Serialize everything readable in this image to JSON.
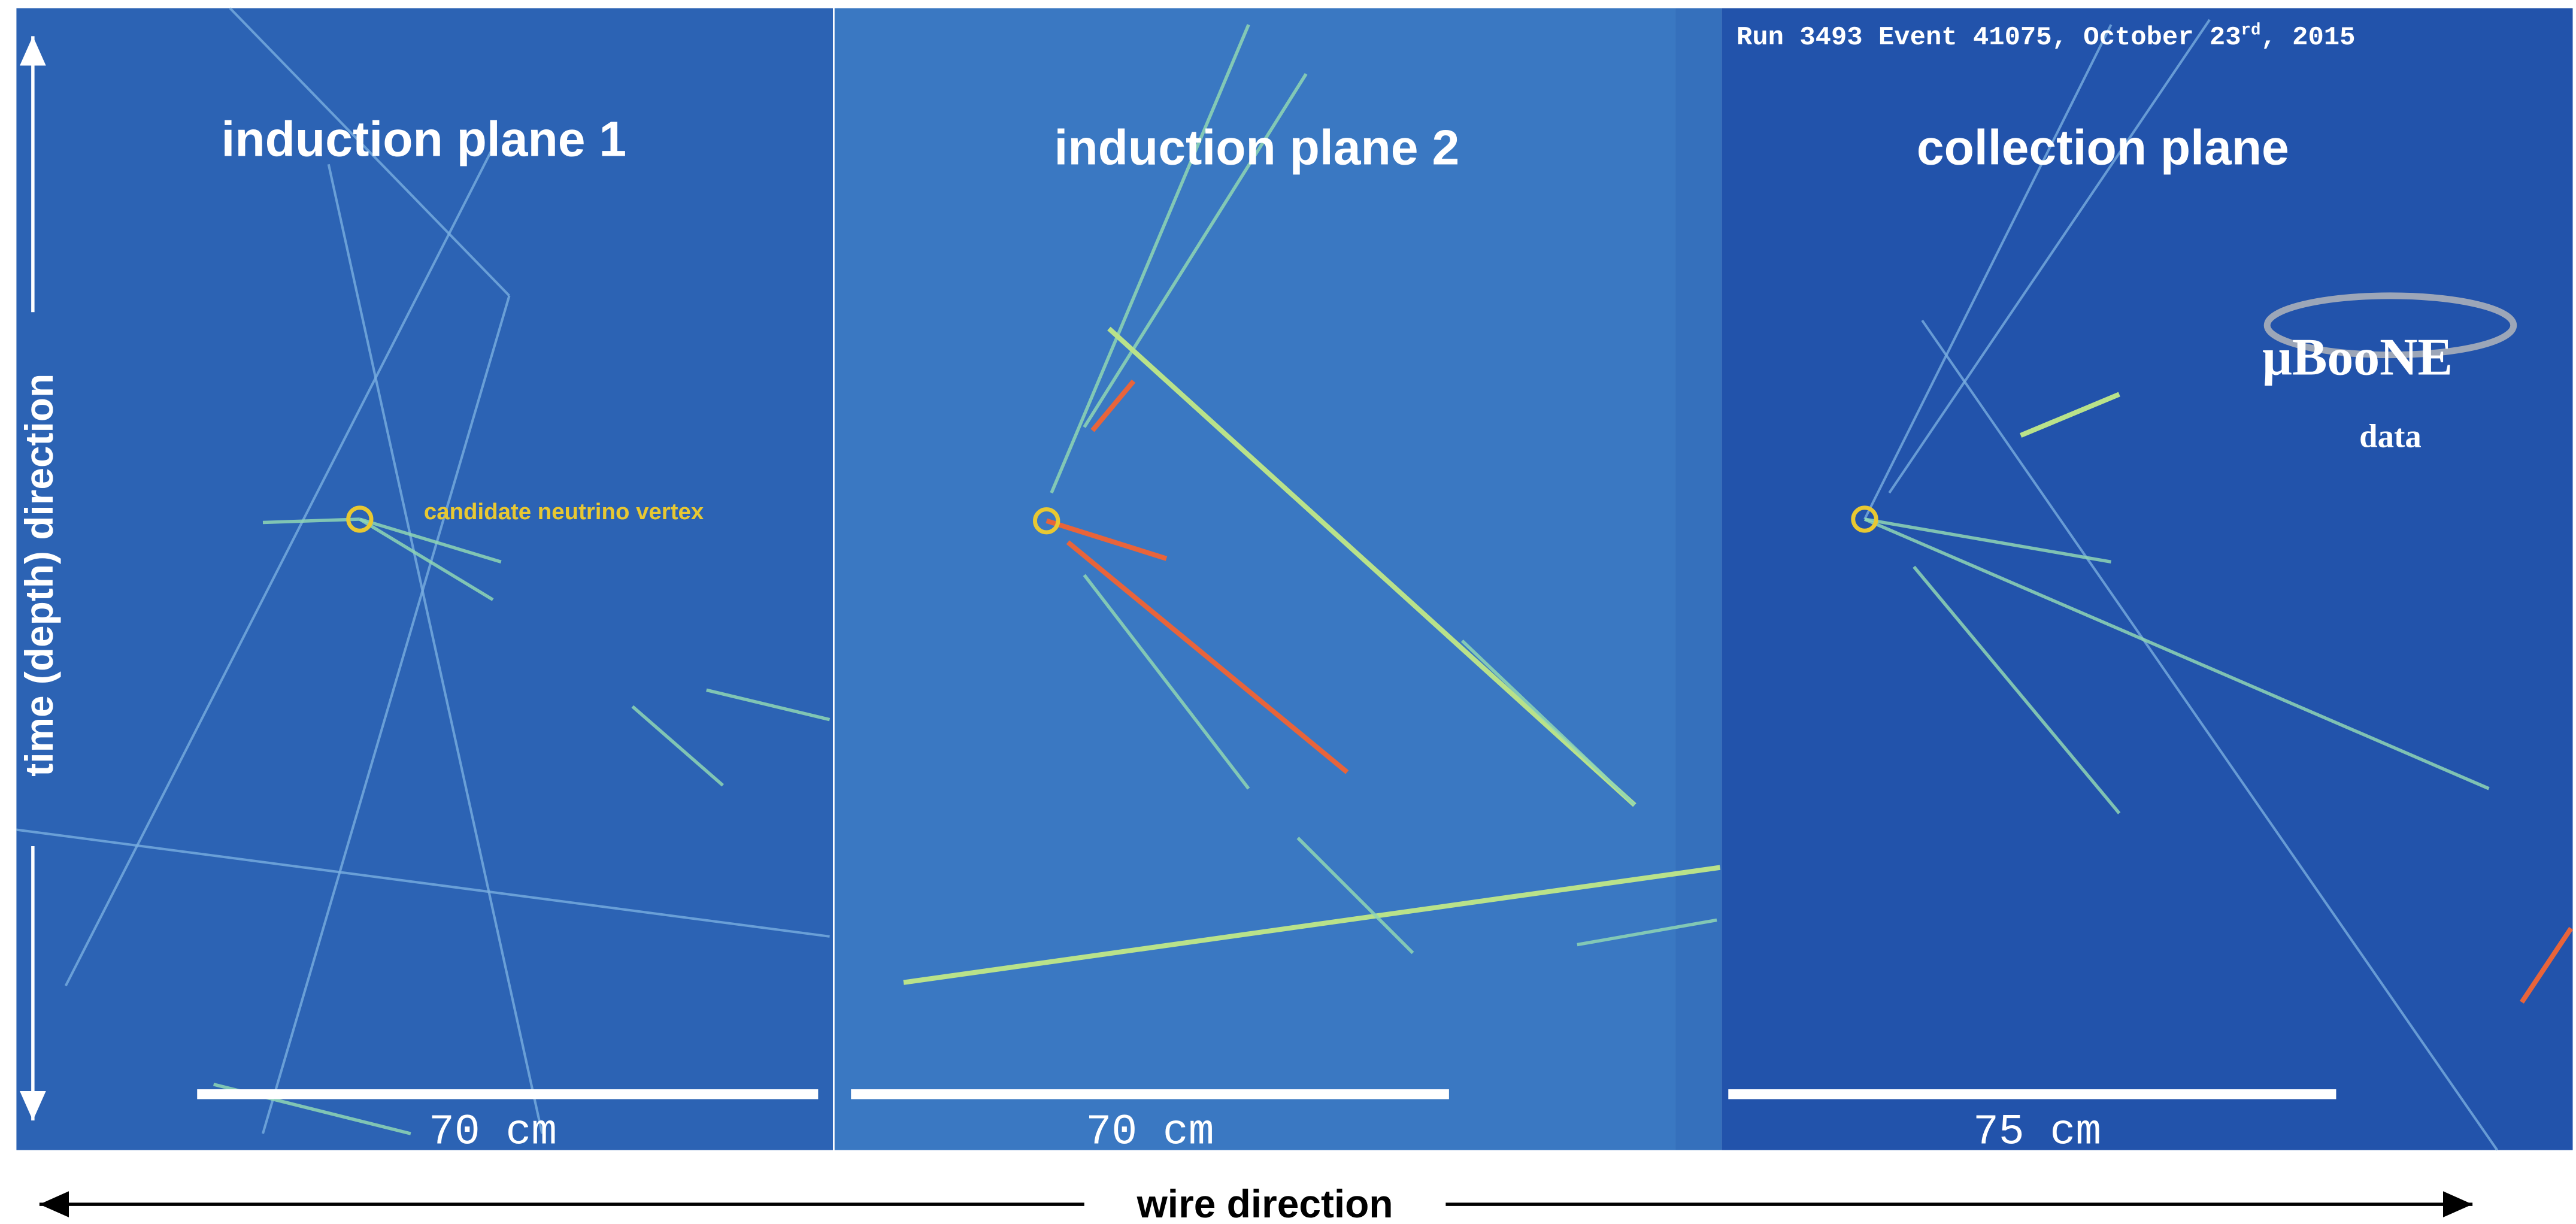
{
  "header": {
    "run_label": {
      "text": "Run 3493 Event 41075, October 23",
      "superscript": "rd",
      "tail": ", 2015"
    }
  },
  "panels": [
    {
      "title": "induction plane 1",
      "scale_label": "70 cm"
    },
    {
      "title": "induction plane 2",
      "scale_label": "70 cm"
    },
    {
      "title": "collection plane",
      "scale_label": "75 cm"
    }
  ],
  "annotation": {
    "vertex_label": "candidate neutrino vertex"
  },
  "logo": {
    "name": "μBooNE",
    "subtitle": "data"
  },
  "axes": {
    "vertical_label": "time (depth) direction",
    "horizontal_label": "wire direction"
  }
}
